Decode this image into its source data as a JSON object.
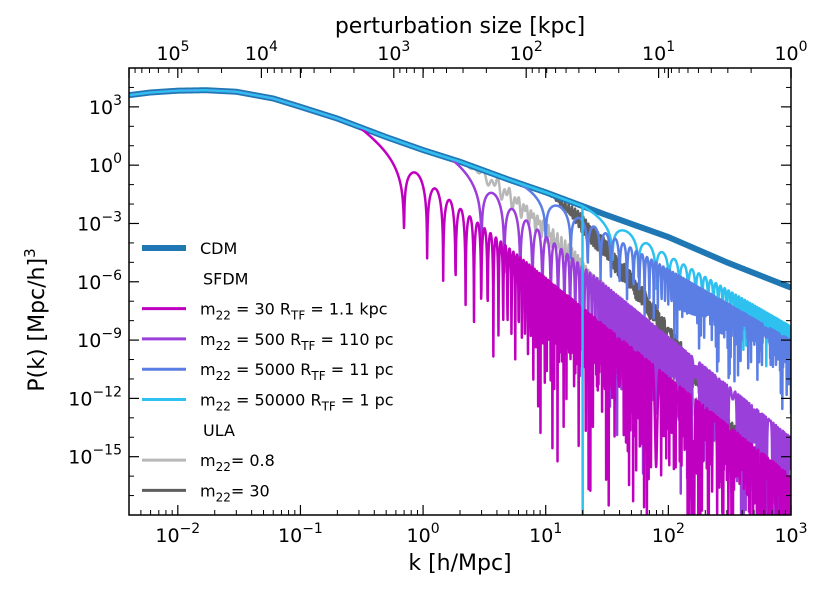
{
  "chart_data": {
    "type": "line",
    "xscale": "log",
    "yscale": "log",
    "xlim": [
      0.004,
      1000
    ],
    "ylim": [
      1e-18,
      100000.0
    ],
    "xlabel": "k [h/Mpc]",
    "ylabel": "P(k) [Mpc/h]",
    "ylabel_sup": "3",
    "top_label": "perturbation size  [kpc]",
    "x_ticks": [
      {
        "value": 0.01,
        "mant": "10",
        "exp": "−2"
      },
      {
        "value": 0.1,
        "mant": "10",
        "exp": "−1"
      },
      {
        "value": 1,
        "mant": "10",
        "exp": "0"
      },
      {
        "value": 10,
        "mant": "10",
        "exp": "1"
      },
      {
        "value": 100,
        "mant": "10",
        "exp": "2"
      },
      {
        "value": 1000,
        "mant": "10",
        "exp": "3"
      }
    ],
    "y_ticks": [
      {
        "value": 1000,
        "mant": "10",
        "exp": "3"
      },
      {
        "value": 1,
        "mant": "10",
        "exp": "0"
      },
      {
        "value": 0.001,
        "mant": "10",
        "exp": "−3"
      },
      {
        "value": 1e-06,
        "mant": "10",
        "exp": "−6"
      },
      {
        "value": 1e-09,
        "mant": "10",
        "exp": "−9"
      },
      {
        "value": 1e-12,
        "mant": "10",
        "exp": "−12"
      },
      {
        "value": 1e-15,
        "mant": "10",
        "exp": "−15"
      }
    ],
    "top_ticks": [
      {
        "size_kpc": 100000,
        "mant": "10",
        "exp": "5"
      },
      {
        "size_kpc": 10000,
        "mant": "10",
        "exp": "4"
      },
      {
        "size_kpc": 1000,
        "mant": "10",
        "exp": "3"
      },
      {
        "size_kpc": 100,
        "mant": "10",
        "exp": "2"
      },
      {
        "size_kpc": 10,
        "mant": "10",
        "exp": "1"
      },
      {
        "size_kpc": 1,
        "mant": "10",
        "exp": "0"
      }
    ],
    "legend_position": "lower-left",
    "legend": [
      {
        "kind": "line",
        "text": "CDM",
        "series": 0
      },
      {
        "kind": "header",
        "text": "SFDM"
      },
      {
        "kind": "line",
        "series": 1,
        "parts": [
          {
            "t": "m"
          },
          {
            "t": "22",
            "sub": true
          },
          {
            "t": " = 30 R"
          },
          {
            "t": "TF",
            "sub": true
          },
          {
            "t": " = 1.1 kpc"
          }
        ]
      },
      {
        "kind": "line",
        "series": 2,
        "parts": [
          {
            "t": "m"
          },
          {
            "t": "22",
            "sub": true
          },
          {
            "t": " = 500 R"
          },
          {
            "t": "TF",
            "sub": true
          },
          {
            "t": " = 110 pc"
          }
        ]
      },
      {
        "kind": "line",
        "series": 3,
        "parts": [
          {
            "t": "m"
          },
          {
            "t": "22",
            "sub": true
          },
          {
            "t": " = 5000 R"
          },
          {
            "t": "TF",
            "sub": true
          },
          {
            "t": " = 11 pc"
          }
        ]
      },
      {
        "kind": "line",
        "series": 4,
        "parts": [
          {
            "t": "m"
          },
          {
            "t": "22",
            "sub": true
          },
          {
            "t": " = 50000 R"
          },
          {
            "t": "TF",
            "sub": true
          },
          {
            "t": " = 1 pc"
          }
        ]
      },
      {
        "kind": "header",
        "text": "ULA"
      },
      {
        "kind": "line",
        "series": 5,
        "parts": [
          {
            "t": "m"
          },
          {
            "t": "22",
            "sub": true
          },
          {
            "t": "= 0.8"
          }
        ]
      },
      {
        "kind": "line",
        "series": 6,
        "parts": [
          {
            "t": "m"
          },
          {
            "t": "22",
            "sub": true
          },
          {
            "t": "= 30"
          }
        ]
      }
    ],
    "series": [
      {
        "name": "CDM",
        "group": "CDM",
        "color": "#1f77b4",
        "width": 6,
        "x": [
          0.004,
          0.006,
          0.01,
          0.017,
          0.03,
          0.06,
          0.1,
          0.2,
          0.5,
          1,
          2,
          5,
          10,
          30,
          100,
          300,
          1000
        ],
        "y": [
          4000,
          5500,
          6800,
          7200,
          6000,
          2700,
          1000,
          250,
          28,
          6,
          1.5,
          0.18,
          0.04,
          0.003,
          0.0002,
          1e-05,
          5e-07
        ]
      },
      {
        "name": "m22 = 30 RTF = 1.1 kpc",
        "group": "SFDM",
        "color": "#c000c0",
        "width": 2.5,
        "cutoff_k": 0.3,
        "first_node_k": 0.7,
        "node_spacing_k": 0.38,
        "env_end": 1e-16,
        "tail_amp": 7.5
      },
      {
        "name": "m22 = 500 RTF = 110 pc",
        "group": "SFDM",
        "color": "#9b3fdb",
        "width": 2.5,
        "cutoff_k": 1.7,
        "first_node_k": 3.0,
        "node_spacing_k": 1.6,
        "env_end": 1e-14,
        "tail_amp": 6.5
      },
      {
        "name": "m22 = 5000 RTF = 11 pc",
        "group": "SFDM",
        "color": "#5b7ee5",
        "width": 2.5,
        "cutoff_k": 6,
        "first_node_k": 10,
        "node_spacing_k": 6,
        "env_end": 1e-09,
        "tail_amp": 2.2
      },
      {
        "name": "m22 = 50000 RTF = 1 pc",
        "group": "SFDM",
        "color": "#2ec1ef",
        "width": 2.5,
        "cutoff_k": 20,
        "first_node_k": 35,
        "node_spacing_k": 22,
        "env_end": 5e-09,
        "tail_amp": 1.2
      },
      {
        "name": "m22= 0.8",
        "group": "ULA",
        "color": "#b8b8b8",
        "width": 2.5,
        "cutoff_k": 2,
        "end_k": 750,
        "end_y": 1e-18
      },
      {
        "name": "m22= 30",
        "group": "ULA",
        "color": "#5e5e5e",
        "width": 2.5,
        "cutoff_k": 10,
        "end_k": 850,
        "end_y": 1e-18
      }
    ]
  }
}
